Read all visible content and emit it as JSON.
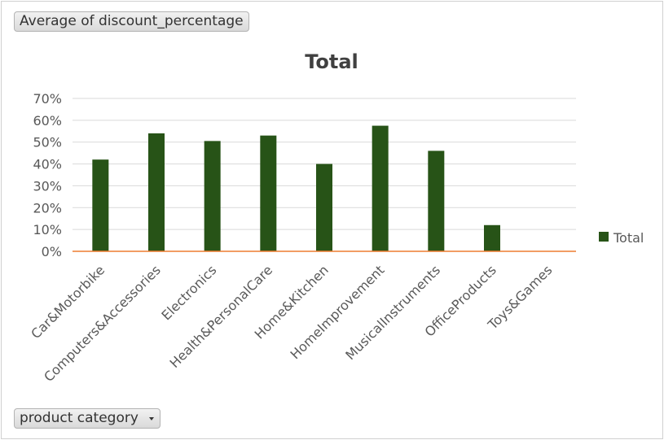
{
  "field_buttons": {
    "value_field": "Average of discount_percentage",
    "axis_field": "product category"
  },
  "chart_data": {
    "type": "bar",
    "title": "Total",
    "categories": [
      "Car&Motorbike",
      "Computers&Accessories",
      "Electronics",
      "Health&PersonalCare",
      "Home&Kitchen",
      "HomeImprovement",
      "MusicalInstruments",
      "OfficeProducts",
      "Toys&Games"
    ],
    "series": [
      {
        "name": "Total",
        "values": [
          0.42,
          0.54,
          0.505,
          0.53,
          0.4,
          0.575,
          0.46,
          0.12,
          0.0
        ],
        "color": "#275317"
      }
    ],
    "ylim": [
      0,
      0.7
    ],
    "yticks": [
      0,
      0.1,
      0.2,
      0.3,
      0.4,
      0.5,
      0.6,
      0.7
    ],
    "ytick_labels": [
      "0%",
      "10%",
      "20%",
      "30%",
      "40%",
      "50%",
      "60%",
      "70%"
    ],
    "grid": true,
    "legend_position": "right",
    "axis_line_color": "#ed7d31",
    "grid_color": "#d9d9d9"
  }
}
